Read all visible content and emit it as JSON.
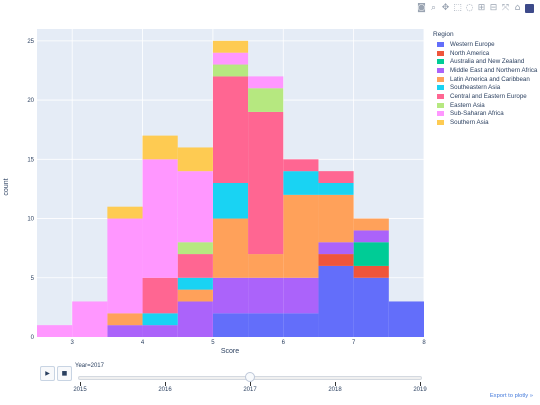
{
  "modebar": {
    "icons": [
      "camera-icon",
      "zoom-icon",
      "pan-icon",
      "box-select-icon",
      "lasso-icon",
      "zoom-in-icon",
      "zoom-out-icon",
      "autoscale-icon",
      "reset-axes-icon",
      "plotly-logo"
    ]
  },
  "legend": {
    "title": "Region",
    "items": [
      {
        "name": "Western Europe",
        "color": "#636efa"
      },
      {
        "name": "North America",
        "color": "#ef553b"
      },
      {
        "name": "Australia and New Zealand",
        "color": "#00cc96"
      },
      {
        "name": "Middle East and Northern Africa",
        "color": "#ab63fa"
      },
      {
        "name": "Latin America and Caribbean",
        "color": "#ffa15a"
      },
      {
        "name": "Southeastern Asia",
        "color": "#19d3f3"
      },
      {
        "name": "Central and Eastern Europe",
        "color": "#ff6692"
      },
      {
        "name": "Eastern Asia",
        "color": "#b6e880"
      },
      {
        "name": "Sub-Saharan Africa",
        "color": "#ff97ff"
      },
      {
        "name": "Southern Asia",
        "color": "#fecb52"
      }
    ]
  },
  "player": {
    "play_label": "▶",
    "stop_label": "■",
    "current_label": "Year=2017",
    "current_value": "2017",
    "steps": [
      "2015",
      "2016",
      "2017",
      "2018",
      "2019"
    ]
  },
  "export_label": "Export to plotly »",
  "chart_data": {
    "type": "bar",
    "stacked": true,
    "xlabel": "Score",
    "ylabel": "count",
    "xlim": [
      2.5,
      8
    ],
    "ylim": [
      0,
      26
    ],
    "xticks": [
      3,
      4,
      5,
      6,
      7,
      8
    ],
    "yticks": [
      0,
      5,
      10,
      15,
      20,
      25
    ],
    "bin_edges": [
      2.5,
      3.0,
      3.5,
      4.0,
      4.5,
      5.0,
      5.5,
      6.0,
      6.5,
      7.0,
      7.5,
      8.0
    ],
    "series": [
      {
        "name": "Western Europe",
        "color": "#636efa",
        "values": [
          0,
          0,
          0,
          0,
          0,
          2,
          2,
          2,
          6,
          5,
          3
        ]
      },
      {
        "name": "North America",
        "color": "#ef553b",
        "values": [
          0,
          0,
          0,
          0,
          0,
          0,
          0,
          0,
          1,
          1,
          0
        ]
      },
      {
        "name": "Australia and New Zealand",
        "color": "#00cc96",
        "values": [
          0,
          0,
          0,
          0,
          0,
          0,
          0,
          0,
          0,
          2,
          0
        ]
      },
      {
        "name": "Middle East and Northern Africa",
        "color": "#ab63fa",
        "values": [
          0,
          0,
          1,
          1,
          3,
          3,
          3,
          3,
          1,
          1,
          0
        ]
      },
      {
        "name": "Latin America and Caribbean",
        "color": "#ffa15a",
        "values": [
          0,
          0,
          1,
          0,
          1,
          5,
          2,
          7,
          4,
          1,
          0
        ]
      },
      {
        "name": "Southeastern Asia",
        "color": "#19d3f3",
        "values": [
          0,
          0,
          0,
          1,
          1,
          3,
          0,
          2,
          1,
          0,
          0
        ]
      },
      {
        "name": "Central and Eastern Europe",
        "color": "#ff6692",
        "values": [
          0,
          0,
          0,
          3,
          2,
          9,
          12,
          1,
          1,
          0,
          0
        ]
      },
      {
        "name": "Eastern Asia",
        "color": "#b6e880",
        "values": [
          0,
          0,
          0,
          0,
          1,
          1,
          2,
          0,
          0,
          0,
          0
        ]
      },
      {
        "name": "Sub-Saharan Africa",
        "color": "#ff97ff",
        "values": [
          1,
          3,
          8,
          10,
          6,
          1,
          1,
          0,
          0,
          0,
          0
        ]
      },
      {
        "name": "Southern Asia",
        "color": "#fecb52",
        "values": [
          0,
          0,
          1,
          2,
          2,
          1,
          0,
          0,
          0,
          0,
          0
        ]
      }
    ]
  }
}
